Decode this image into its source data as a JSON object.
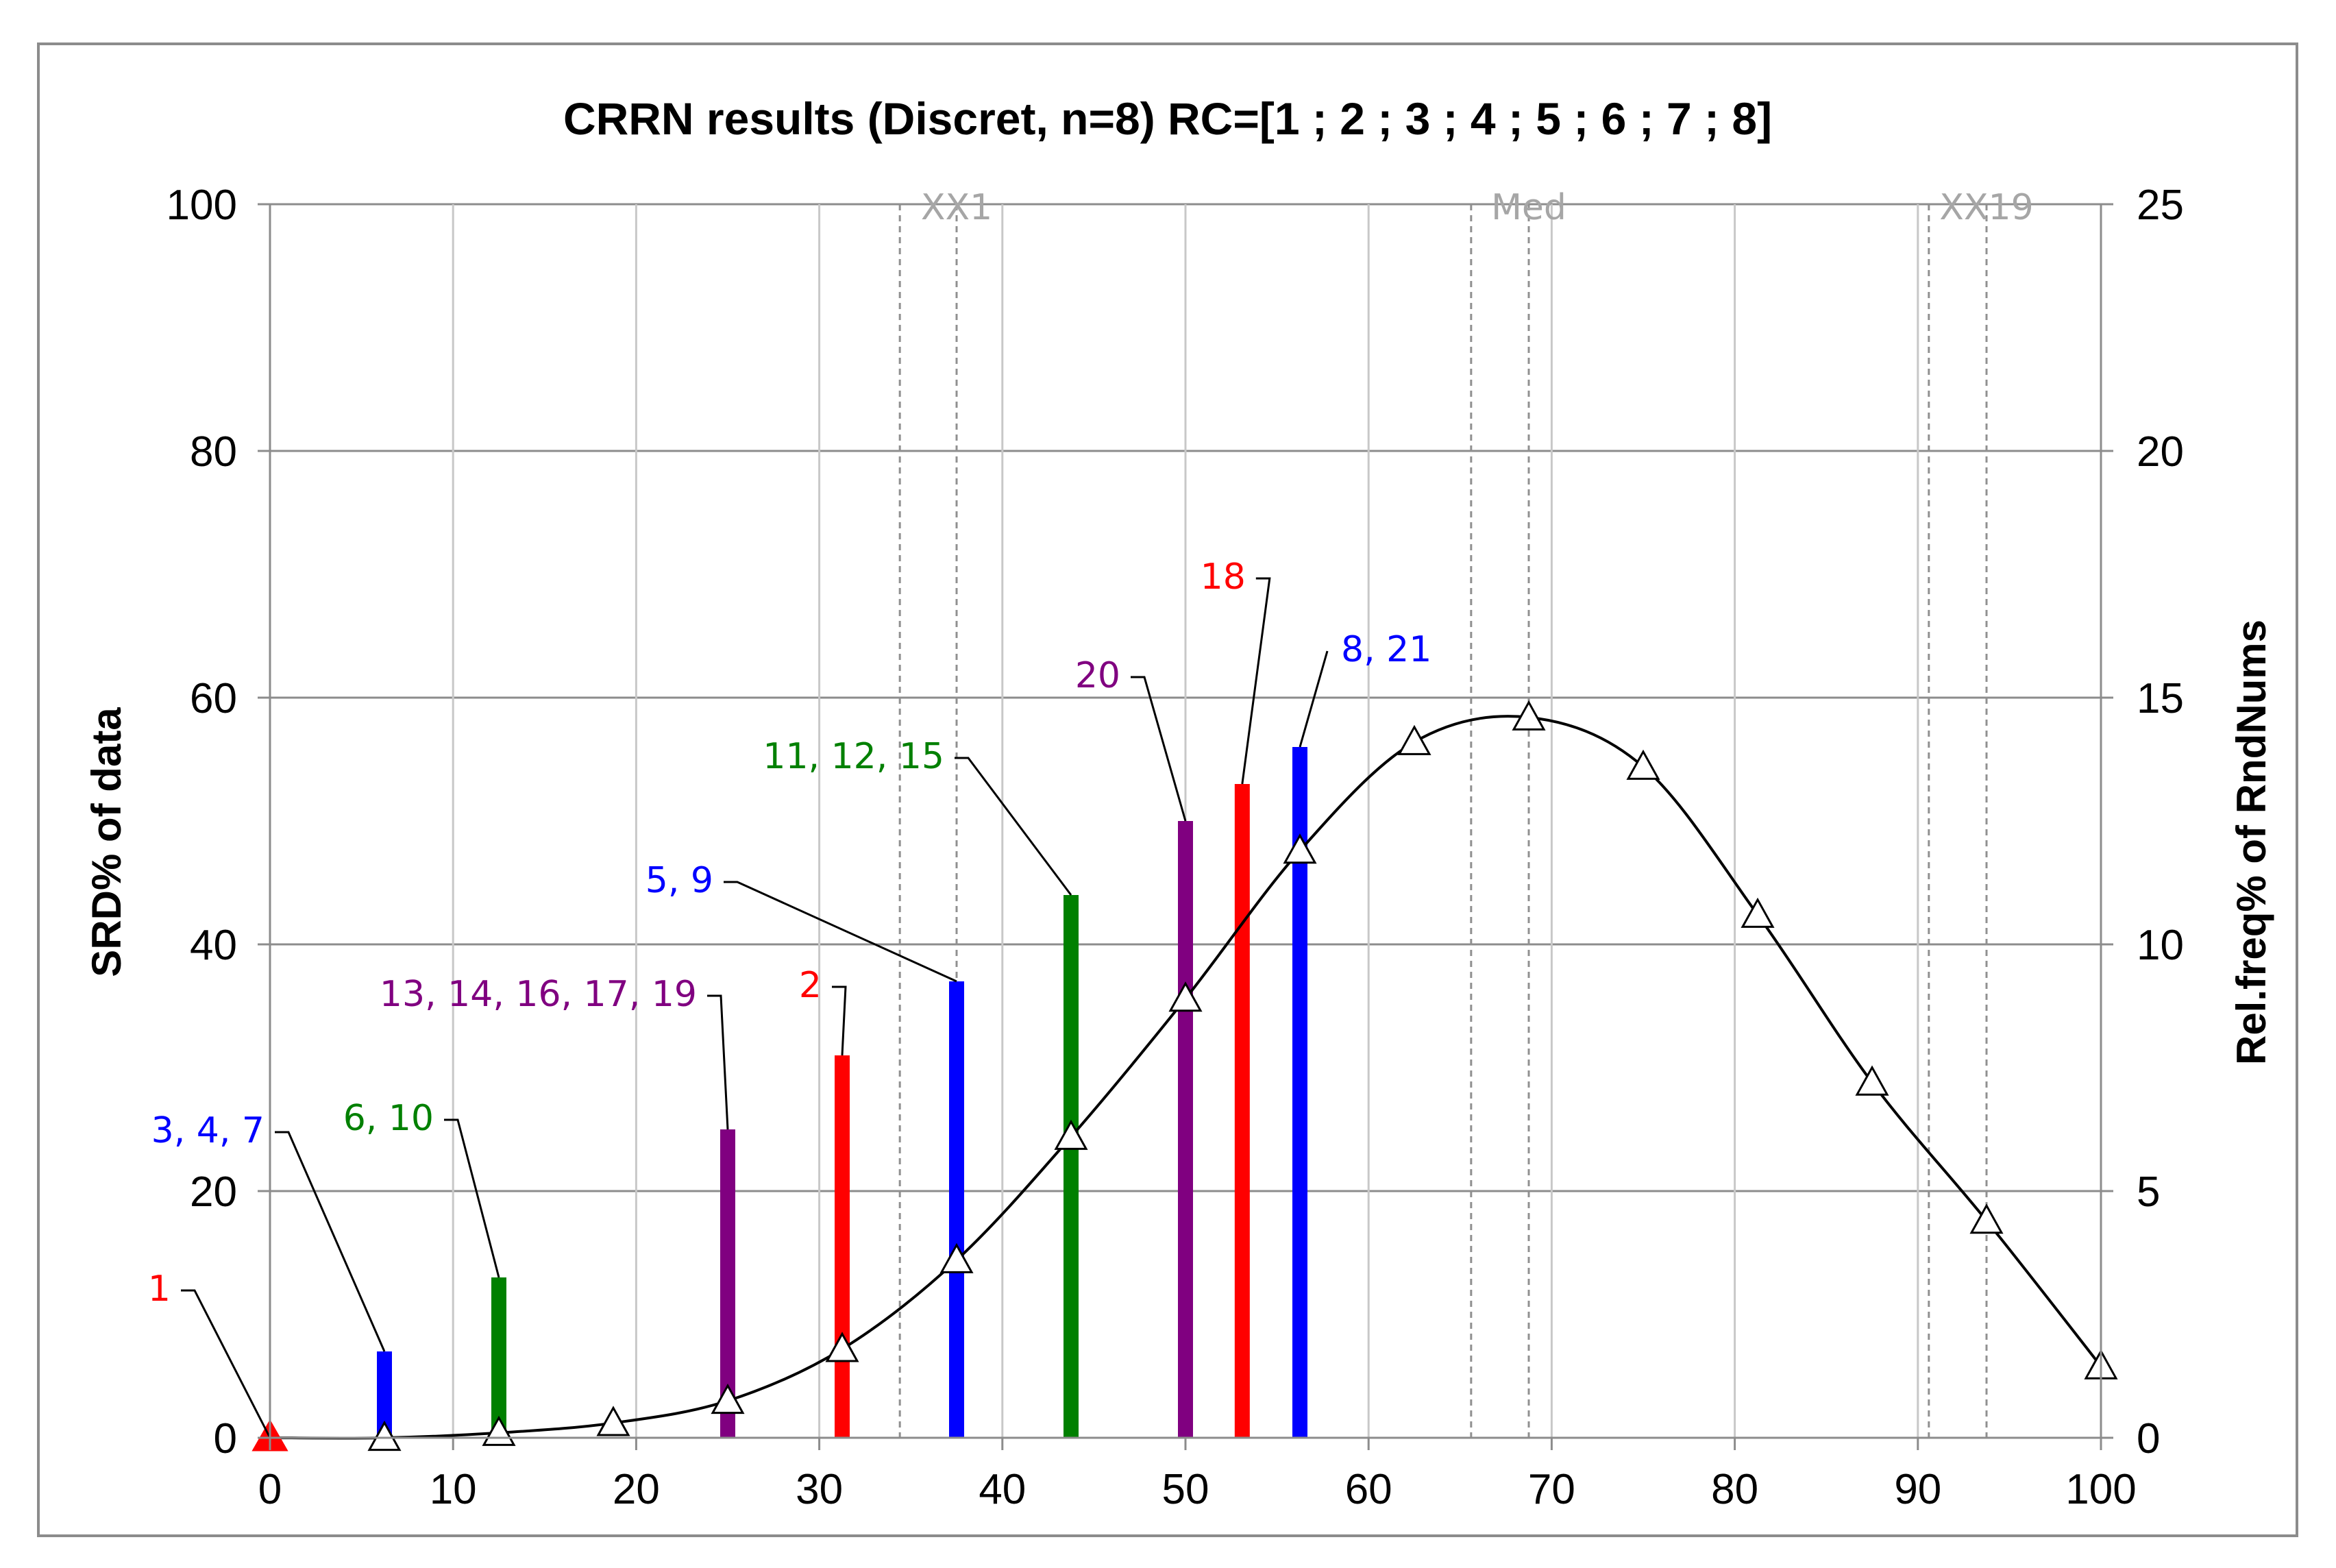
{
  "chart_data": {
    "type": "bar",
    "title": "CRRN results (Discret, n=8) RC=[1 ; 2 ; 3 ; 4 ; 5 ; 6 ; 7 ; 8]",
    "xlabel": "",
    "ylabel": "SRD%  of data",
    "y2label": "Rel.freq% of RndNums",
    "xlim": [
      0,
      100
    ],
    "ylim": [
      0,
      100
    ],
    "y2lim": [
      0,
      25
    ],
    "x_ticks": [
      "0",
      "10",
      "20",
      "30",
      "40",
      "50",
      "60",
      "70",
      "80",
      "90",
      "100"
    ],
    "y_ticks": [
      "0",
      "20",
      "40",
      "60",
      "80",
      "100"
    ],
    "y2_ticks": [
      "0",
      "5",
      "10",
      "15",
      "20",
      "25"
    ],
    "grid": true,
    "legend": "none",
    "bars": [
      {
        "x": 0,
        "value": 0,
        "label": "1",
        "color": "#ff0000"
      },
      {
        "x": 6.25,
        "value": 7,
        "label": "3, 4, 7",
        "color": "#0000ff"
      },
      {
        "x": 12.5,
        "value": 13,
        "label": "6, 10",
        "color": "#008000"
      },
      {
        "x": 25,
        "value": 25,
        "label": "13, 14, 16, 17, 19",
        "color": "#800080"
      },
      {
        "x": 31.25,
        "value": 31,
        "label": "2",
        "color": "#ff0000"
      },
      {
        "x": 37.5,
        "value": 37,
        "label": "5, 9",
        "color": "#0000ff"
      },
      {
        "x": 43.75,
        "value": 44,
        "label": "11, 12, 15",
        "color": "#008000"
      },
      {
        "x": 50,
        "value": 50,
        "label": "20",
        "color": "#800080"
      },
      {
        "x": 53.1,
        "value": 53,
        "label": "18",
        "color": "#ff0000"
      },
      {
        "x": 56.25,
        "value": 56,
        "label": "8, 21",
        "color": "#0000ff"
      }
    ],
    "curve": {
      "axis": "secondary",
      "x": [
        0,
        6.25,
        12.5,
        18.75,
        25,
        31.25,
        37.5,
        43.75,
        50,
        56.25,
        62.5,
        68.75,
        75,
        81.25,
        87.5,
        93.75,
        100
      ],
      "values": [
        0,
        0,
        0.1,
        0.3,
        0.75,
        1.8,
        3.6,
        6.1,
        8.9,
        11.9,
        14.1,
        14.6,
        13.6,
        10.6,
        7.2,
        4.4,
        1.45
      ]
    },
    "reference_lines": [
      {
        "label": "XX1",
        "x": 37.5,
        "shadow_x": 34.4
      },
      {
        "label": "Med",
        "x": 68.75,
        "shadow_x": 65.6
      },
      {
        "label": "XX19",
        "x": 93.75,
        "shadow_x": 90.6
      }
    ]
  }
}
